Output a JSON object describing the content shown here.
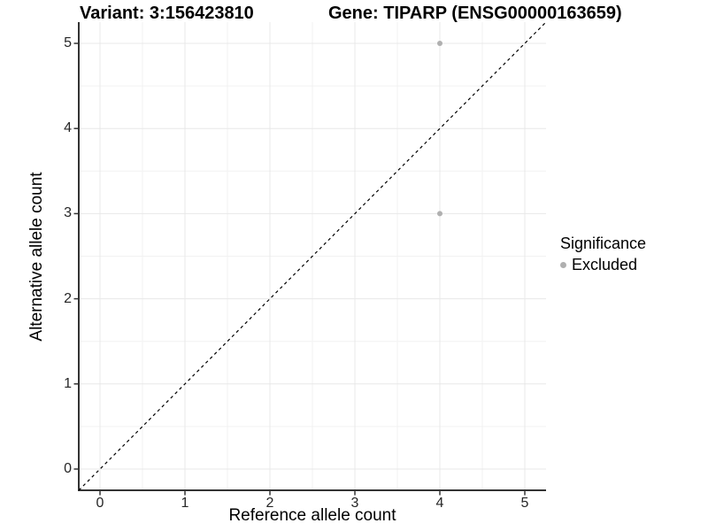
{
  "titles": {
    "variant": "Variant: 3:156423810",
    "gene": "Gene: TIPARP (ENSG00000163659)"
  },
  "axes": {
    "xlabel": "Reference allele count",
    "ylabel": "Alternative allele count",
    "x_tick_labels": [
      "0",
      "1",
      "2",
      "3",
      "4",
      "5"
    ],
    "y_tick_labels": [
      "0",
      "1",
      "2",
      "3",
      "4",
      "5"
    ]
  },
  "legend": {
    "title": "Significance",
    "items": [
      {
        "label": "Excluded",
        "color": "#b0b0b0"
      }
    ]
  },
  "chart_data": {
    "type": "scatter",
    "title": "Variant: 3:156423810 — Gene: TIPARP (ENSG00000163659)",
    "xlabel": "Reference allele count",
    "ylabel": "Alternative allele count",
    "xlim": [
      -0.25,
      5.25
    ],
    "ylim": [
      -0.25,
      5.25
    ],
    "x_ticks": [
      0,
      1,
      2,
      3,
      4,
      5
    ],
    "y_ticks": [
      0,
      1,
      2,
      3,
      4,
      5
    ],
    "grid": {
      "major": true,
      "minor": true
    },
    "legend_position": "right",
    "reference_line": {
      "kind": "identity_y_equals_x",
      "style": "dashed",
      "color": "#000000"
    },
    "series": [
      {
        "name": "Excluded",
        "color": "#b0b0b0",
        "points": [
          [
            4,
            5
          ],
          [
            4,
            3
          ]
        ]
      }
    ]
  },
  "colors": {
    "background": "#ffffff",
    "grid_major": "#e8e8e8",
    "grid_minor": "#f2f2f2",
    "axis_line": "#333333",
    "tick_mark": "#333333",
    "tick_label": "#262626",
    "point": "#b0b0b0",
    "dashed_line": "#000000"
  }
}
